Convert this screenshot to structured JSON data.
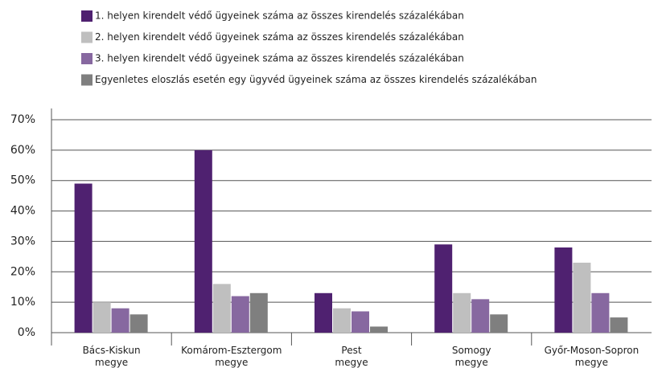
{
  "chart_data": {
    "type": "bar",
    "categories": [
      "Bács-Kiskun megye",
      "Komárom-Esztergom megye",
      "Pest megye",
      "Somogy megye",
      "Győr-Moson-Sopron megye"
    ],
    "series": [
      {
        "name": "1. helyen kirendelt védő ügyeinek száma az összes kirendelés százalékában",
        "color": "#4f2170",
        "values": [
          49,
          60,
          13,
          29,
          28
        ]
      },
      {
        "name": "2. helyen kirendelt védő ügyeinek száma az összes kirendelés százalékában",
        "color": "#bfbfbf",
        "values": [
          10,
          16,
          8,
          13,
          23
        ]
      },
      {
        "name": "3. helyen kirendelt védő ügyeinek száma az összes kirendelés százalékában",
        "color": "#8768a0",
        "values": [
          8,
          12,
          7,
          11,
          13
        ]
      },
      {
        "name": "Egyenletes eloszlás esetén egy ügyvéd ügyeinek száma az összes kirendelés százalékában",
        "color": "#7f7f7f",
        "values": [
          6,
          13,
          2,
          6,
          5
        ]
      }
    ],
    "ylim": [
      0,
      70
    ],
    "yticks": [
      {
        "value": 0,
        "label": "0%"
      },
      {
        "value": 10,
        "label": "10%"
      },
      {
        "value": 20,
        "label": "20%"
      },
      {
        "value": 30,
        "label": "30%"
      },
      {
        "value": 40,
        "label": "40%"
      },
      {
        "value": 50,
        "label": "50%"
      },
      {
        "value": 60,
        "label": "60%"
      },
      {
        "value": 70,
        "label": "70%"
      }
    ],
    "grid": true,
    "legend": "top"
  }
}
